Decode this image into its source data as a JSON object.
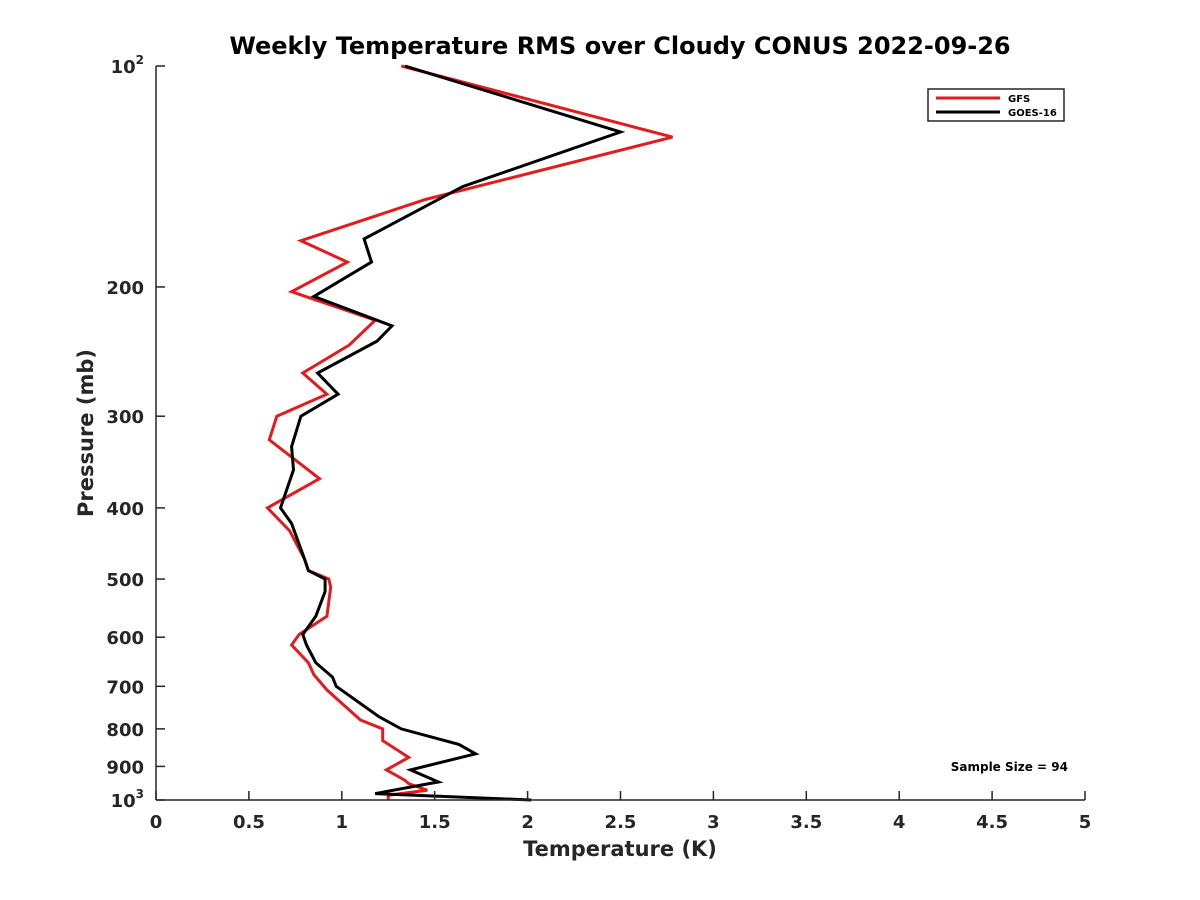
{
  "chart_data": {
    "type": "line",
    "title": "Weekly Temperature RMS over Cloudy CONUS 2022-09-26",
    "xlabel": "Temperature (K)",
    "ylabel": "Pressure (mb)",
    "xlim": [
      0,
      5
    ],
    "ylim": [
      100,
      1000
    ],
    "yscale": "log",
    "y_reversed": true,
    "x_ticks": [
      0,
      0.5,
      1,
      1.5,
      2,
      2.5,
      3,
      3.5,
      4,
      4.5,
      5
    ],
    "x_tick_labels": [
      "0",
      "0.5",
      "1",
      "1.5",
      "2",
      "2.5",
      "3",
      "3.5",
      "4",
      "4.5",
      "5"
    ],
    "y_ticks": [
      {
        "value": 100,
        "base": "10",
        "exp": "2"
      },
      {
        "value": 200,
        "label": "200"
      },
      {
        "value": 300,
        "label": "300"
      },
      {
        "value": 400,
        "label": "400"
      },
      {
        "value": 500,
        "label": "500"
      },
      {
        "value": 600,
        "label": "600"
      },
      {
        "value": 700,
        "label": "700"
      },
      {
        "value": 800,
        "label": "800"
      },
      {
        "value": 900,
        "label": "900"
      },
      {
        "value": 1000,
        "base": "10",
        "exp": "3"
      }
    ],
    "grid": false,
    "legend_position": "top-right",
    "annotation": "Sample Size = 94",
    "series": [
      {
        "name": "GFS",
        "color": "#e41a1c",
        "x": [
          1.32,
          2.78,
          1.45,
          0.78,
          1.03,
          0.73,
          1.18,
          1.04,
          0.79,
          0.92,
          0.65,
          0.61,
          0.88,
          0.6,
          0.72,
          0.8,
          0.82,
          0.93,
          0.94,
          0.92,
          0.77,
          0.73,
          0.82,
          0.85,
          0.92,
          1.1,
          1.22,
          1.22,
          1.36,
          1.24,
          1.34,
          1.36,
          1.46,
          1.25,
          1.25
        ],
        "y": [
          100,
          125,
          152,
          173,
          185,
          203,
          222,
          240,
          262,
          280,
          300,
          323,
          365,
          400,
          430,
          470,
          487,
          500,
          513,
          562,
          595,
          615,
          650,
          675,
          708,
          778,
          800,
          830,
          875,
          910,
          940,
          950,
          970,
          985,
          1000
        ]
      },
      {
        "name": "GOES-16",
        "color": "#000000",
        "x": [
          1.34,
          2.5,
          1.65,
          1.12,
          1.16,
          0.85,
          1.27,
          1.19,
          0.87,
          0.98,
          0.78,
          0.73,
          0.74,
          0.67,
          0.73,
          0.8,
          0.82,
          0.91,
          0.91,
          0.86,
          0.79,
          0.81,
          0.86,
          0.95,
          0.97,
          1.2,
          1.32,
          1.63,
          1.72,
          1.37,
          1.52,
          1.47,
          1.18,
          2.02
        ],
        "y": [
          100,
          123,
          146,
          172,
          185,
          206,
          226,
          237,
          262,
          280,
          300,
          330,
          355,
          400,
          420,
          470,
          487,
          500,
          520,
          562,
          595,
          615,
          650,
          680,
          700,
          770,
          800,
          840,
          865,
          910,
          945,
          950,
          980,
          1000
        ]
      }
    ]
  }
}
